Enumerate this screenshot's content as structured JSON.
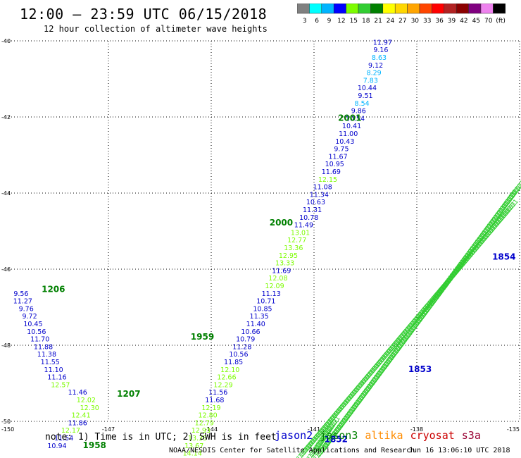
{
  "header": {
    "title": "12:00 – 23:59 UTC 06/15/2018",
    "subtitle": "12 hour collection of altimeter wave heights"
  },
  "colorbar": {
    "labels": [
      "3",
      "6",
      "9",
      "12",
      "15",
      "18",
      "21",
      "24",
      "27",
      "30",
      "33",
      "36",
      "39",
      "42",
      "45",
      "70",
      "(ft)"
    ],
    "colors": [
      "#808080",
      "#00ffff",
      "#00b4ff",
      "#0000ff",
      "#7cfc00",
      "#32cd32",
      "#008000",
      "#ffff00",
      "#ffd700",
      "#ffa500",
      "#ff4500",
      "#ff0000",
      "#b22222",
      "#8b0000",
      "#800080",
      "#ee82ee",
      "#000000"
    ]
  },
  "axes": {
    "lat_labels": [
      "-40",
      "-42",
      "-44",
      "-46",
      "-48",
      "-50"
    ],
    "lon_labels": [
      "-150",
      "-147",
      "-144",
      "-141",
      "-138",
      "-135"
    ]
  },
  "footer": {
    "note": "note: 1) Time is in UTC; 2) SWH is in feet",
    "credit": "NOAA/NESDIS Center for Satellite Applications and Research",
    "stamp": "Jun 16 13:06:10 UTC 2018",
    "satellites": [
      {
        "name": "jason2",
        "color": "#0000cc"
      },
      {
        "name": "jason3",
        "color": "#008000"
      },
      {
        "name": "altika",
        "color": "#ff8c00"
      },
      {
        "name": "cryosat",
        "color": "#cc0000"
      },
      {
        "name": "s3a",
        "color": "#990033"
      }
    ]
  },
  "tracks": [
    {
      "id": "track-2001",
      "time_label": "2001",
      "time_label_color": "#008000",
      "time_label_at": {
        "lon": -140.3,
        "lat": -42.1
      },
      "points": [
        {
          "v": "11.97",
          "lon": -139.0,
          "lat": -40.1,
          "c": "#0000cc"
        },
        {
          "v": "9.16",
          "lon": -139.05,
          "lat": -40.3,
          "c": "#0000cc"
        },
        {
          "v": "8.63",
          "lon": -139.1,
          "lat": -40.5,
          "c": "#00b4ff"
        },
        {
          "v": "9.12",
          "lon": -139.2,
          "lat": -40.7,
          "c": "#0000cc"
        },
        {
          "v": "8.29",
          "lon": -139.25,
          "lat": -40.9,
          "c": "#00b4ff"
        },
        {
          "v": "7.83",
          "lon": -139.35,
          "lat": -41.1,
          "c": "#00b4ff"
        },
        {
          "v": "10.44",
          "lon": -139.45,
          "lat": -41.3,
          "c": "#0000cc"
        },
        {
          "v": "9.51",
          "lon": -139.5,
          "lat": -41.5,
          "c": "#0000cc"
        },
        {
          "v": "8.54",
          "lon": -139.6,
          "lat": -41.7,
          "c": "#00b4ff"
        },
        {
          "v": "9.86",
          "lon": -139.7,
          "lat": -41.9,
          "c": "#0000cc"
        },
        {
          "v": "10.54",
          "lon": -139.8,
          "lat": -42.1,
          "c": "#0000cc"
        },
        {
          "v": "10.41",
          "lon": -139.9,
          "lat": -42.3,
          "c": "#0000cc"
        },
        {
          "v": "11.00",
          "lon": -140.0,
          "lat": -42.5,
          "c": "#0000cc"
        },
        {
          "v": "10.43",
          "lon": -140.1,
          "lat": -42.7,
          "c": "#0000cc"
        },
        {
          "v": "9.75",
          "lon": -140.2,
          "lat": -42.9,
          "c": "#0000cc"
        },
        {
          "v": "11.67",
          "lon": -140.3,
          "lat": -43.1,
          "c": "#0000cc"
        },
        {
          "v": "10.95",
          "lon": -140.4,
          "lat": -43.3,
          "c": "#0000cc"
        },
        {
          "v": "11.69",
          "lon": -140.5,
          "lat": -43.5,
          "c": "#0000cc"
        },
        {
          "v": "12.15",
          "lon": -140.6,
          "lat": -43.7,
          "c": "#7cfc00"
        },
        {
          "v": "11.08",
          "lon": -140.75,
          "lat": -43.9,
          "c": "#0000cc"
        },
        {
          "v": "11.34",
          "lon": -140.85,
          "lat": -44.1,
          "c": "#0000cc"
        },
        {
          "v": "10.63",
          "lon": -140.95,
          "lat": -44.3,
          "c": "#0000cc"
        },
        {
          "v": "11.31",
          "lon": -141.05,
          "lat": -44.5,
          "c": "#0000cc"
        },
        {
          "v": "10.78",
          "lon": -141.15,
          "lat": -44.7,
          "c": "#0000cc"
        },
        {
          "v": "11.49",
          "lon": -141.3,
          "lat": -44.9,
          "c": "#0000cc"
        }
      ]
    },
    {
      "id": "track-2000",
      "time_label": "2000",
      "time_label_color": "#008000",
      "time_label_at": {
        "lon": -142.3,
        "lat": -44.85
      },
      "points": [
        {
          "v": "13.01",
          "lon": -141.4,
          "lat": -45.1,
          "c": "#7cfc00"
        },
        {
          "v": "12.77",
          "lon": -141.5,
          "lat": -45.3,
          "c": "#7cfc00"
        },
        {
          "v": "13.36",
          "lon": -141.6,
          "lat": -45.5,
          "c": "#7cfc00"
        },
        {
          "v": "12.95",
          "lon": -141.75,
          "lat": -45.7,
          "c": "#7cfc00"
        },
        {
          "v": "13.33",
          "lon": -141.85,
          "lat": -45.9,
          "c": "#7cfc00"
        },
        {
          "v": "11.69",
          "lon": -141.95,
          "lat": -46.1,
          "c": "#0000cc"
        },
        {
          "v": "12.08",
          "lon": -142.05,
          "lat": -46.3,
          "c": "#7cfc00"
        },
        {
          "v": "12.09",
          "lon": -142.15,
          "lat": -46.5,
          "c": "#7cfc00"
        },
        {
          "v": "11.13",
          "lon": -142.25,
          "lat": -46.7,
          "c": "#0000cc"
        },
        {
          "v": "10.71",
          "lon": -142.4,
          "lat": -46.9,
          "c": "#0000cc"
        },
        {
          "v": "10.85",
          "lon": -142.5,
          "lat": -47.1,
          "c": "#0000cc"
        },
        {
          "v": "11.35",
          "lon": -142.6,
          "lat": -47.3,
          "c": "#0000cc"
        },
        {
          "v": "11.40",
          "lon": -142.7,
          "lat": -47.5,
          "c": "#0000cc"
        },
        {
          "v": "10.66",
          "lon": -142.85,
          "lat": -47.7,
          "c": "#0000cc"
        }
      ]
    },
    {
      "id": "track-1959",
      "time_label": "1959",
      "time_label_color": "#008000",
      "time_label_at": {
        "lon": -144.6,
        "lat": -47.85
      },
      "points": [
        {
          "v": "10.79",
          "lon": -143.0,
          "lat": -47.9,
          "c": "#0000cc"
        },
        {
          "v": "11.28",
          "lon": -143.1,
          "lat": -48.1,
          "c": "#0000cc"
        },
        {
          "v": "10.56",
          "lon": -143.2,
          "lat": -48.3,
          "c": "#0000cc"
        },
        {
          "v": "11.85",
          "lon": -143.35,
          "lat": -48.5,
          "c": "#0000cc"
        },
        {
          "v": "12.10",
          "lon": -143.45,
          "lat": -48.7,
          "c": "#7cfc00"
        },
        {
          "v": "12.66",
          "lon": -143.55,
          "lat": -48.9,
          "c": "#7cfc00"
        },
        {
          "v": "12.29",
          "lon": -143.65,
          "lat": -49.1,
          "c": "#7cfc00"
        },
        {
          "v": "11.56",
          "lon": -143.8,
          "lat": -49.3,
          "c": "#0000cc"
        },
        {
          "v": "11.68",
          "lon": -143.9,
          "lat": -49.5,
          "c": "#0000cc"
        },
        {
          "v": "12.19",
          "lon": -144.0,
          "lat": -49.7,
          "c": "#7cfc00"
        },
        {
          "v": "12.80",
          "lon": -144.1,
          "lat": -49.9,
          "c": "#7cfc00"
        },
        {
          "v": "12.79",
          "lon": -144.2,
          "lat": -50.1,
          "c": "#7cfc00"
        },
        {
          "v": "12.93",
          "lon": -144.3,
          "lat": -50.3,
          "c": "#7cfc00"
        },
        {
          "v": "13.35",
          "lon": -144.4,
          "lat": -50.5,
          "c": "#7cfc00"
        },
        {
          "v": "13.67",
          "lon": -144.5,
          "lat": -50.7,
          "c": "#7cfc00"
        },
        {
          "v": "14.14",
          "lon": -144.55,
          "lat": -50.9,
          "c": "#7cfc00"
        }
      ]
    },
    {
      "id": "track-1206",
      "time_label": "1206",
      "time_label_color": "#008000",
      "time_label_at": {
        "lon": -148.95,
        "lat": -46.6
      },
      "points": [
        {
          "v": "9.56",
          "lon": -149.55,
          "lat": -46.7,
          "c": "#0000cc"
        },
        {
          "v": "11.27",
          "lon": -149.5,
          "lat": -46.9,
          "c": "#0000cc"
        },
        {
          "v": "9.76",
          "lon": -149.4,
          "lat": -47.1,
          "c": "#0000cc"
        },
        {
          "v": "9.72",
          "lon": -149.3,
          "lat": -47.3,
          "c": "#0000cc"
        },
        {
          "v": "10.45",
          "lon": -149.2,
          "lat": -47.5,
          "c": "#0000cc"
        },
        {
          "v": "10.56",
          "lon": -149.1,
          "lat": -47.7,
          "c": "#0000cc"
        },
        {
          "v": "11.70",
          "lon": -149.0,
          "lat": -47.9,
          "c": "#0000cc"
        },
        {
          "v": "11.88",
          "lon": -148.9,
          "lat": -48.1,
          "c": "#0000cc"
        },
        {
          "v": "11.38",
          "lon": -148.8,
          "lat": -48.3,
          "c": "#0000cc"
        },
        {
          "v": "11.55",
          "lon": -148.7,
          "lat": -48.5,
          "c": "#0000cc"
        },
        {
          "v": "11.10",
          "lon": -148.6,
          "lat": -48.7,
          "c": "#0000cc"
        },
        {
          "v": "11.16",
          "lon": -148.5,
          "lat": -48.9,
          "c": "#0000cc"
        },
        {
          "v": "12.57",
          "lon": -148.4,
          "lat": -49.1,
          "c": "#7cfc00"
        }
      ]
    },
    {
      "id": "track-1207",
      "time_label": "1207",
      "time_label_color": "#008000",
      "time_label_at": {
        "lon": -146.75,
        "lat": -49.35
      },
      "points": [
        {
          "v": "11.46",
          "lon": -147.9,
          "lat": -49.3,
          "c": "#0000cc"
        },
        {
          "v": "12.02",
          "lon": -147.65,
          "lat": -49.5,
          "c": "#7cfc00"
        },
        {
          "v": "12.30",
          "lon": -147.55,
          "lat": -49.7,
          "c": "#7cfc00"
        },
        {
          "v": "12.41",
          "lon": -147.8,
          "lat": -49.9,
          "c": "#7cfc00"
        },
        {
          "v": "11.86",
          "lon": -147.9,
          "lat": -50.1,
          "c": "#0000cc"
        },
        {
          "v": "12.17",
          "lon": -148.1,
          "lat": -50.3,
          "c": "#7cfc00"
        },
        {
          "v": "11.54",
          "lon": -148.3,
          "lat": -50.5,
          "c": "#0000cc"
        },
        {
          "v": "10.94",
          "lon": -148.5,
          "lat": -50.7,
          "c": "#0000cc"
        }
      ]
    },
    {
      "id": "track-1958",
      "time_label": "1958",
      "time_label_color": "#008000",
      "time_label_at": {
        "lon": -147.75,
        "lat": -50.7
      },
      "points": []
    }
  ],
  "swaths": [
    {
      "id": "swath-1854",
      "time_label": "1854",
      "time_label_color": "#0000cc",
      "time_label_at": {
        "lon": -135.8,
        "lat": -45.75
      },
      "from": {
        "lon": -140.8,
        "lat": -50.9
      },
      "to": {
        "lon": -135.0,
        "lat": -43.9
      },
      "color": "#32cd32"
    },
    {
      "id": "swath-1853",
      "time_label": "1853",
      "time_label_color": "#0000cc",
      "time_label_at": {
        "lon": -138.25,
        "lat": -48.7
      },
      "from": {
        "lon": -141.3,
        "lat": -50.9
      },
      "to": {
        "lon": -135.2,
        "lat": -44.4
      },
      "color": "#32cd32"
    },
    {
      "id": "swath-1852",
      "time_label": "1852",
      "time_label_color": "#0000cc",
      "time_label_at": {
        "lon": -140.7,
        "lat": -50.55
      },
      "from": {
        "lon": -141.0,
        "lat": -50.9
      },
      "to": {
        "lon": -140.4,
        "lat": -50.1
      },
      "color": "#32cd32"
    }
  ]
}
